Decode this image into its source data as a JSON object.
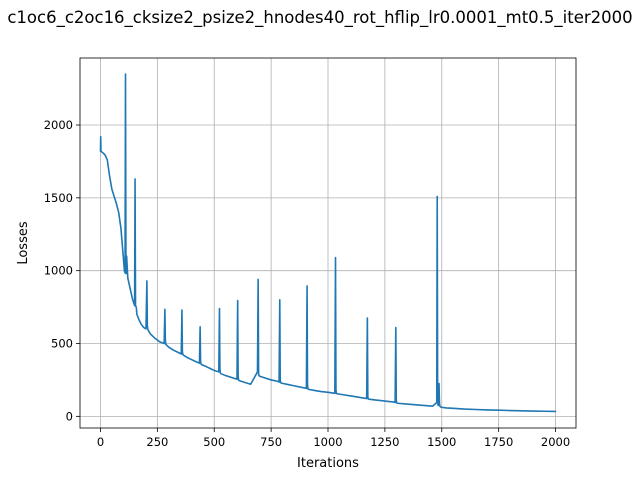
{
  "chart_data": {
    "type": "line",
    "title": "c1oc6_c2oc16_cksize2_psize2_hnodes40_rot_hflip_lr0.0001_mt0.5_iter2000",
    "xlabel": "Iterations",
    "ylabel": "Losses",
    "xlim": [
      -90,
      2090
    ],
    "ylim": [
      -80,
      2460
    ],
    "grid": true,
    "line_color": "#1f77b4",
    "xticks": [
      0,
      250,
      500,
      750,
      1000,
      1250,
      1500,
      1750,
      2000
    ],
    "yticks": [
      0,
      500,
      1000,
      1500,
      2000
    ],
    "series": [
      {
        "x": [
          0,
          1,
          2,
          10,
          20,
          30,
          40,
          50,
          60,
          70,
          80,
          90,
          100,
          105,
          108,
          110,
          112,
          115,
          120,
          130,
          140,
          150,
          152,
          154,
          156,
          158,
          160,
          170,
          180,
          190,
          200,
          204,
          206,
          208,
          210,
          220,
          240,
          260,
          280,
          283,
          285,
          287,
          290,
          300,
          320,
          340,
          355,
          358,
          360,
          362,
          365,
          380,
          400,
          420,
          435,
          438,
          440,
          442,
          445,
          460,
          480,
          500,
          520,
          523,
          525,
          527,
          530,
          550,
          580,
          600,
          603,
          605,
          607,
          610,
          630,
          660,
          690,
          693,
          695,
          697,
          700,
          720,
          750,
          780,
          785,
          788,
          790,
          792,
          795,
          820,
          850,
          880,
          905,
          908,
          910,
          912,
          915,
          940,
          970,
          1000,
          1030,
          1033,
          1035,
          1037,
          1040,
          1060,
          1100,
          1140,
          1170,
          1173,
          1175,
          1177,
          1180,
          1210,
          1250,
          1290,
          1295,
          1298,
          1300,
          1302,
          1305,
          1340,
          1380,
          1420,
          1460,
          1478,
          1480,
          1482,
          1484,
          1486,
          1488,
          1490,
          1492,
          1494,
          1500,
          1520,
          1550,
          1600,
          1650,
          1700,
          1750,
          1800,
          1850,
          1900,
          1950,
          2000
        ],
        "y": [
          1820,
          1920,
          1820,
          1810,
          1795,
          1760,
          1650,
          1560,
          1510,
          1460,
          1400,
          1290,
          1100,
          1000,
          985,
          2350,
          980,
          1100,
          950,
          880,
          810,
          760,
          1630,
          760,
          755,
          740,
          700,
          660,
          630,
          610,
          600,
          930,
          625,
          600,
          590,
          565,
          535,
          512,
          500,
          735,
          530,
          495,
          490,
          475,
          455,
          440,
          428,
          730,
          445,
          425,
          420,
          405,
          390,
          375,
          365,
          615,
          375,
          360,
          355,
          345,
          330,
          315,
          305,
          740,
          320,
          298,
          292,
          280,
          265,
          255,
          795,
          275,
          250,
          245,
          235,
          220,
          305,
          940,
          290,
          280,
          275,
          265,
          250,
          240,
          235,
          800,
          250,
          232,
          228,
          220,
          210,
          200,
          192,
          895,
          215,
          188,
          185,
          178,
          170,
          165,
          158,
          1090,
          180,
          158,
          155,
          150,
          140,
          130,
          122,
          675,
          135,
          120,
          118,
          112,
          105,
          98,
          95,
          610,
          110,
          93,
          90,
          85,
          80,
          75,
          70,
          95,
          1510,
          100,
          75,
          80,
          225,
          90,
          70,
          65,
          62,
          58,
          55,
          50,
          47,
          44,
          42,
          40,
          38,
          36,
          35,
          34
        ]
      }
    ]
  }
}
